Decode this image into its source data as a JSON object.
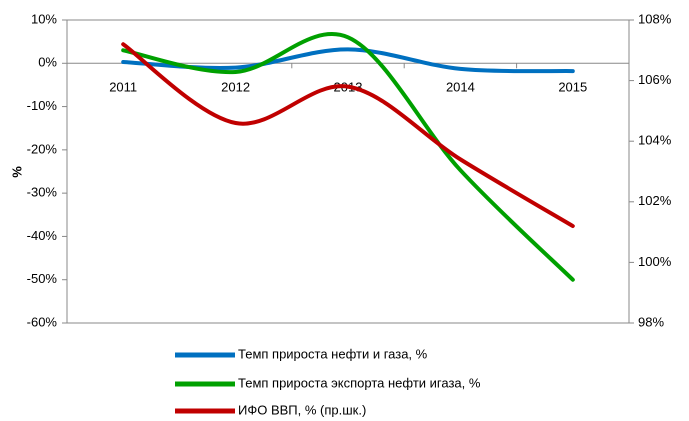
{
  "chart_data": {
    "type": "line",
    "y_label": "%",
    "categories": [
      "2011",
      "2012",
      "2013",
      "2014",
      "2015"
    ],
    "series": [
      {
        "name": "Темп прироста нефти и газа, %",
        "color": "#0070c0",
        "values": [
          0.3,
          -1,
          3.2,
          -1.3,
          -1.8
        ]
      },
      {
        "name": "Темп прироста экспорта нефти игаза, %",
        "color": "#00a000",
        "values": [
          3,
          -2,
          6,
          -24.7,
          -50
        ]
      },
      {
        "name": "ИФО ВВП, % (пр.шк.)",
        "color": "#c00000",
        "axis": "y2",
        "values": [
          107.2,
          104.6,
          105.8,
          103.4,
          101.2
        ]
      }
    ],
    "ylim": [
      -60,
      10
    ],
    "yticks": [
      {
        "value": 10,
        "label": "10%"
      },
      {
        "value": 0,
        "label": "0%"
      },
      {
        "value": -10,
        "label": "-10%"
      },
      {
        "value": -20,
        "label": "-20%"
      },
      {
        "value": -30,
        "label": "-30%"
      },
      {
        "value": -40,
        "label": "-40%"
      },
      {
        "value": -50,
        "label": "-50%"
      },
      {
        "value": -60,
        "label": "-60%"
      }
    ],
    "y2lim": [
      98,
      108
    ],
    "y2ticks": [
      {
        "value": 108,
        "label": "108%"
      },
      {
        "value": 106,
        "label": "106%"
      },
      {
        "value": 104,
        "label": "104%"
      },
      {
        "value": 102,
        "label": "102%"
      },
      {
        "value": 100,
        "label": "100%"
      },
      {
        "value": 98,
        "label": "98%"
      }
    ],
    "smooth": true,
    "legend": "bottom"
  }
}
